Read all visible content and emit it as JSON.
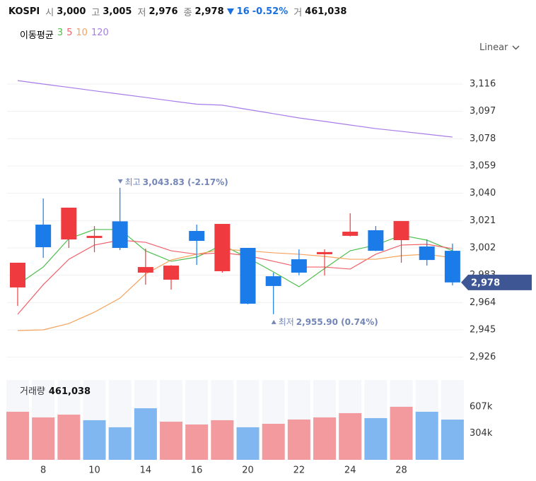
{
  "header": {
    "symbol": "KOSPI",
    "items": [
      {
        "label": "시",
        "value": "3,000"
      },
      {
        "label": "고",
        "value": "3,005"
      },
      {
        "label": "저",
        "value": "2,976"
      },
      {
        "label": "종",
        "value": "2,978"
      }
    ],
    "change": "16",
    "change_pct": "-0.52%",
    "volume_label": "거",
    "volume": "461,038"
  },
  "ma_label": "이동평균",
  "scale_mode": "Linear",
  "chart_data": {
    "type": "candlestick",
    "up_color": "#ef3b40",
    "down_color": "#1a7be9",
    "categories": [
      null,
      "8",
      null,
      "10",
      null,
      "14",
      null,
      "16",
      null,
      "20",
      null,
      "22",
      null,
      "24",
      null,
      "28",
      null,
      null
    ],
    "open": [
      2974.5,
      3018.2,
      3007.9,
      3008.9,
      3020.5,
      2984.8,
      2979.9,
      3013.8,
      2985.8,
      3002,
      2982.3,
      2994.1,
      2997.6,
      3010.4,
      3014.3,
      3007.4,
      3003,
      3000
    ],
    "high": [
      2991.7,
      3036.4,
      3030,
      3017.2,
      3043.83,
      3001.5,
      2990,
      3018.2,
      3018.7,
      3002,
      2984.8,
      3001,
      3001,
      3026.1,
      3017.2,
      3020.7,
      3007.9,
      3005
    ],
    "low": [
      2961.7,
      2995.1,
      3002,
      2999,
      3000.5,
      2976.4,
      2973,
      2990.2,
      2984.8,
      2962.8,
      2955.9,
      2983,
      2982.8,
      3010,
      2999.8,
      2991.7,
      2989.7,
      2976
    ],
    "close": [
      2991.7,
      3002.5,
      3030,
      3010.4,
      3002,
      2988.7,
      2989.7,
      3006.9,
      3018.7,
      2963.2,
      2975.5,
      2984.8,
      2999.1,
      3013.3,
      3000,
      3020.7,
      2993.6,
      2978
    ],
    "moving_averages": [
      {
        "name": "3",
        "color": "#4cbf4c",
        "values": [
          2976.4,
          2988.7,
          3008.4,
          3014.8,
          3014.8,
          3000,
          2992.7,
          2995.6,
          3004,
          2995.1,
          2985.3,
          2975,
          2987.7,
          3000,
          3004,
          3010.8,
          3007.4,
          3000
        ]
      },
      {
        "name": "5",
        "color": "#f0606a",
        "values": [
          2955.8,
          2976.4,
          2994.1,
          3004,
          3007.4,
          3005.9,
          3000,
          2997.6,
          2998.6,
          2996.6,
          2992.7,
          2988.7,
          2988.7,
          2987.3,
          2997.6,
          3004,
          3004.5,
          3001.5
        ]
      },
      {
        "name": "10",
        "color": "#f5a25c",
        "values": [
          2944.5,
          2945,
          2949.4,
          2957.3,
          2967.1,
          2983.8,
          2993.6,
          2997.6,
          3001,
          3000,
          2998.6,
          2997.6,
          2996.1,
          2994.1,
          2994.1,
          2996.6,
          2997.6,
          2995.1
        ]
      },
      {
        "name": "120",
        "color": "#a77be8",
        "values": [
          3118.4,
          3116,
          3113.7,
          3111.3,
          3109,
          3106.7,
          3104.3,
          3102,
          3101.3,
          3098.3,
          3095.4,
          3092.4,
          3090,
          3087.5,
          3085,
          3083.1,
          3081.1,
          3079.1
        ]
      }
    ],
    "ylim": [
      2916.5,
      3132.7
    ],
    "yticks": [
      {
        "value": 2926,
        "label": "2,926"
      },
      {
        "value": 2945,
        "label": "2,945"
      },
      {
        "value": 2964,
        "label": "2,964"
      },
      {
        "value": 2983,
        "label": "2,983"
      },
      {
        "value": 3002,
        "label": "3,002"
      },
      {
        "value": 3021,
        "label": "3,021"
      },
      {
        "value": 3040,
        "label": "3,040"
      },
      {
        "value": 3059,
        "label": "3,059"
      },
      {
        "value": 3078,
        "label": "3,078"
      },
      {
        "value": 3097,
        "label": "3,097"
      },
      {
        "value": 3116,
        "label": "3,116"
      }
    ],
    "grid": true,
    "annotations": [
      {
        "text": "최고",
        "value_text": "3,043.83 (-2.17%)",
        "kind": "high",
        "index": 4
      },
      {
        "text": "최저",
        "value_text": "2,955.90 (0.74%)",
        "kind": "low",
        "index": 10
      }
    ],
    "volume": {
      "label": "거래량",
      "up_color": "#f29a9e",
      "down_color": "#80b7f0",
      "values": [
        551000,
        486000,
        518000,
        454000,
        373000,
        591000,
        437000,
        405000,
        454000,
        373000,
        413000,
        462000,
        486000,
        535000,
        478000,
        608000,
        551000,
        461038
      ],
      "ylim": [
        0,
        915000
      ],
      "yticks": [
        {
          "value": 304000,
          "label": "304k"
        },
        {
          "value": 607000,
          "label": "607k"
        }
      ]
    }
  }
}
